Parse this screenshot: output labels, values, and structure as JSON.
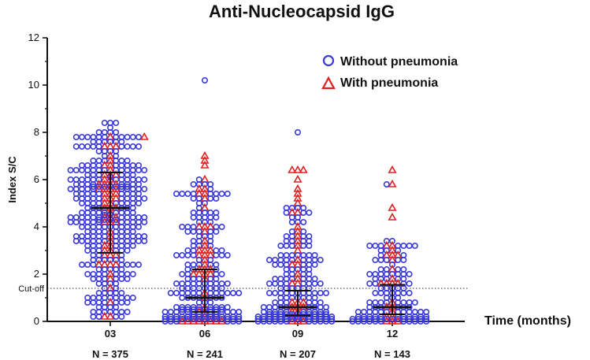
{
  "chart_data": {
    "type": "scatter",
    "title": "Anti-Nucleocapsid IgG",
    "ylabel": "Index S/C",
    "xlabel": "Time (months)",
    "ylim": [
      0,
      12
    ],
    "yticks": [
      0,
      2,
      4,
      6,
      8,
      10,
      12
    ],
    "cutoff": {
      "label": "Cut-off",
      "value": 1.4
    },
    "categories": [
      "03",
      "06",
      "09",
      "12"
    ],
    "n_labels": [
      "N = 375",
      "N = 241",
      "N = 207",
      "N = 143"
    ],
    "colors": {
      "without": "#3a3ad8",
      "with": "#e02020",
      "axis": "#111111"
    },
    "legend": [
      {
        "label": "Without pneumonia",
        "marker": "circle-icon"
      },
      {
        "label": "With pneumonia",
        "marker": "triangle-icon"
      }
    ],
    "summary": [
      {
        "category": "03",
        "median": 4.8,
        "q1": 2.9,
        "q3": 6.3
      },
      {
        "category": "06",
        "median": 1.0,
        "q1": 0.4,
        "q3": 2.2
      },
      {
        "category": "09",
        "median": 0.6,
        "q1": 0.25,
        "q3": 1.3
      },
      {
        "category": "12",
        "median": 0.6,
        "q1": 0.3,
        "q3": 1.55
      }
    ],
    "groups": [
      {
        "category": "03",
        "count": 375,
        "with_count": 60,
        "max_without": 8.5,
        "max_with": 7.9,
        "center": 4.8,
        "spread": 2.2,
        "min": 0.05
      },
      {
        "category": "06",
        "count": 241,
        "with_count": 45,
        "max_without": 10.2,
        "max_with": 6.9,
        "center": 0.9,
        "spread": 1.3,
        "min": 0.05
      },
      {
        "category": "09",
        "count": 207,
        "with_count": 35,
        "max_without": 8.1,
        "max_with": 6.5,
        "center": 0.5,
        "spread": 1.0,
        "min": 0.05
      },
      {
        "category": "12",
        "count": 143,
        "with_count": 25,
        "max_without": 5.8,
        "max_with": 6.5,
        "center": 0.6,
        "spread": 0.9,
        "min": 0.05
      }
    ]
  }
}
